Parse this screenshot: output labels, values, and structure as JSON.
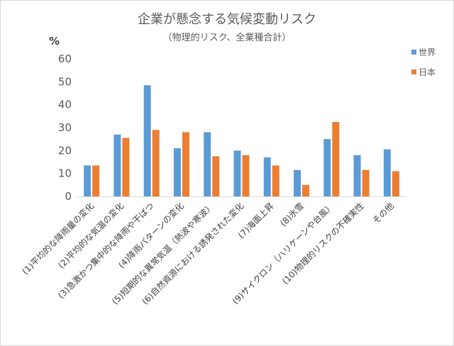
{
  "chart_data": {
    "type": "bar",
    "title": "企業が懸念する気候変動リスク",
    "subtitle": "（物理的リスク、全業種合計）",
    "ylabel": "%",
    "ylim": [
      0,
      60
    ],
    "yticks": [
      0,
      10,
      20,
      30,
      40,
      50,
      60
    ],
    "grid": false,
    "legend_position": "right",
    "categories": [
      "(1)平均的な降雨量の変化",
      "(2)平均的な気温の変化",
      "(3)急激かつ集中的な降雨や干ばつ",
      "(4)降雨パターンの変化",
      "(5)短期的な異常気温（熱波や寒波）",
      "(6)自然資源における誘発された変化",
      "(7)海面上昇",
      "(8)氷雪",
      "(9)サイクロン（ハリケーンや台風）",
      "(10)物理的リスクの不確実性",
      "その他"
    ],
    "series": [
      {
        "name": "世界",
        "color": "#5b9bd5",
        "values": [
          13.5,
          27,
          48.5,
          21,
          28,
          20,
          17,
          11.5,
          25,
          18,
          20.5
        ]
      },
      {
        "name": "日本",
        "color": "#ed7d31",
        "values": [
          13.5,
          25.5,
          29,
          28,
          17.5,
          18,
          13.5,
          5,
          32.5,
          11.5,
          11
        ]
      }
    ]
  }
}
